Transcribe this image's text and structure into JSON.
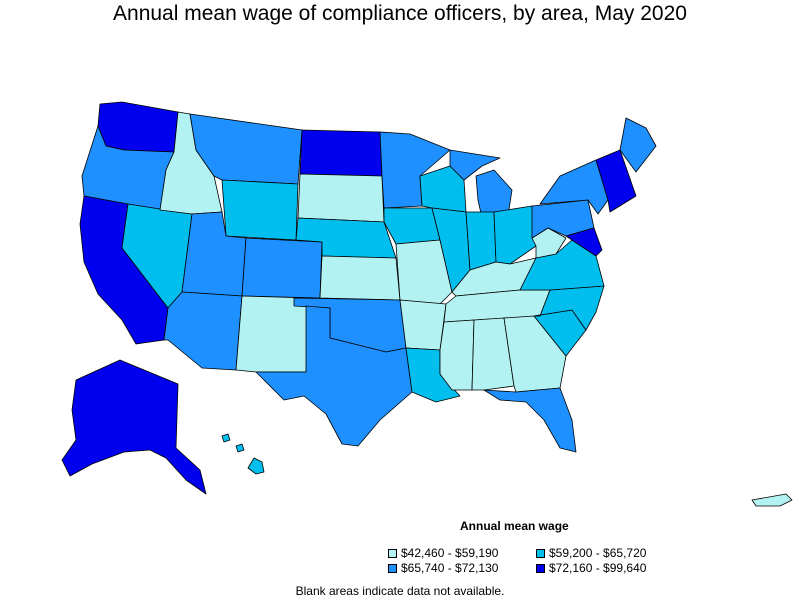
{
  "title": "Annual mean wage of compliance officers, by area, May 2020",
  "legend": {
    "title": "Annual mean wage",
    "items": [
      {
        "label": "$42,460 - $59,190",
        "color": "#b3f2f2"
      },
      {
        "label": "$59,200 - $65,720",
        "color": "#00bfef"
      },
      {
        "label": "$65,740 - $72,130",
        "color": "#1e90ff"
      },
      {
        "label": "$72,160 - $99,640",
        "color": "#0000ee"
      }
    ]
  },
  "note": "Blank areas indicate data not available.",
  "regions": [
    {
      "name": "Washington",
      "tier": 3
    },
    {
      "name": "Oregon",
      "tier": 2
    },
    {
      "name": "California",
      "tier": 3
    },
    {
      "name": "Nevada",
      "tier": 1
    },
    {
      "name": "Idaho",
      "tier": 0
    },
    {
      "name": "Montana",
      "tier": 2
    },
    {
      "name": "Wyoming",
      "tier": 1
    },
    {
      "name": "Utah",
      "tier": 2
    },
    {
      "name": "Colorado",
      "tier": 2
    },
    {
      "name": "Arizona",
      "tier": 2
    },
    {
      "name": "New Mexico",
      "tier": 0
    },
    {
      "name": "North Dakota",
      "tier": 3
    },
    {
      "name": "South Dakota",
      "tier": 0
    },
    {
      "name": "Nebraska",
      "tier": 1
    },
    {
      "name": "Kansas",
      "tier": 0
    },
    {
      "name": "Oklahoma",
      "tier": 2
    },
    {
      "name": "Texas",
      "tier": 2
    },
    {
      "name": "Minnesota",
      "tier": 2
    },
    {
      "name": "Iowa",
      "tier": 1
    },
    {
      "name": "Missouri",
      "tier": 0
    },
    {
      "name": "Arkansas",
      "tier": 0
    },
    {
      "name": "Louisiana",
      "tier": 1
    },
    {
      "name": "Wisconsin",
      "tier": 1
    },
    {
      "name": "Illinois",
      "tier": 1
    },
    {
      "name": "Michigan",
      "tier": 2
    },
    {
      "name": "Indiana",
      "tier": 1
    },
    {
      "name": "Ohio",
      "tier": 1
    },
    {
      "name": "Kentucky",
      "tier": 0
    },
    {
      "name": "Tennessee",
      "tier": 0
    },
    {
      "name": "Mississippi",
      "tier": 0
    },
    {
      "name": "Alabama",
      "tier": 0
    },
    {
      "name": "Georgia",
      "tier": 0
    },
    {
      "name": "Florida",
      "tier": 2
    },
    {
      "name": "South Carolina",
      "tier": 1
    },
    {
      "name": "North Carolina",
      "tier": 1
    },
    {
      "name": "Virginia",
      "tier": 1
    },
    {
      "name": "West Virginia",
      "tier": 0
    },
    {
      "name": "Pennsylvania",
      "tier": 2
    },
    {
      "name": "New York",
      "tier": 2
    },
    {
      "name": "Maine",
      "tier": 2
    },
    {
      "name": "Alaska",
      "tier": 3
    },
    {
      "name": "Hawaii",
      "tier": 1
    }
  ]
}
